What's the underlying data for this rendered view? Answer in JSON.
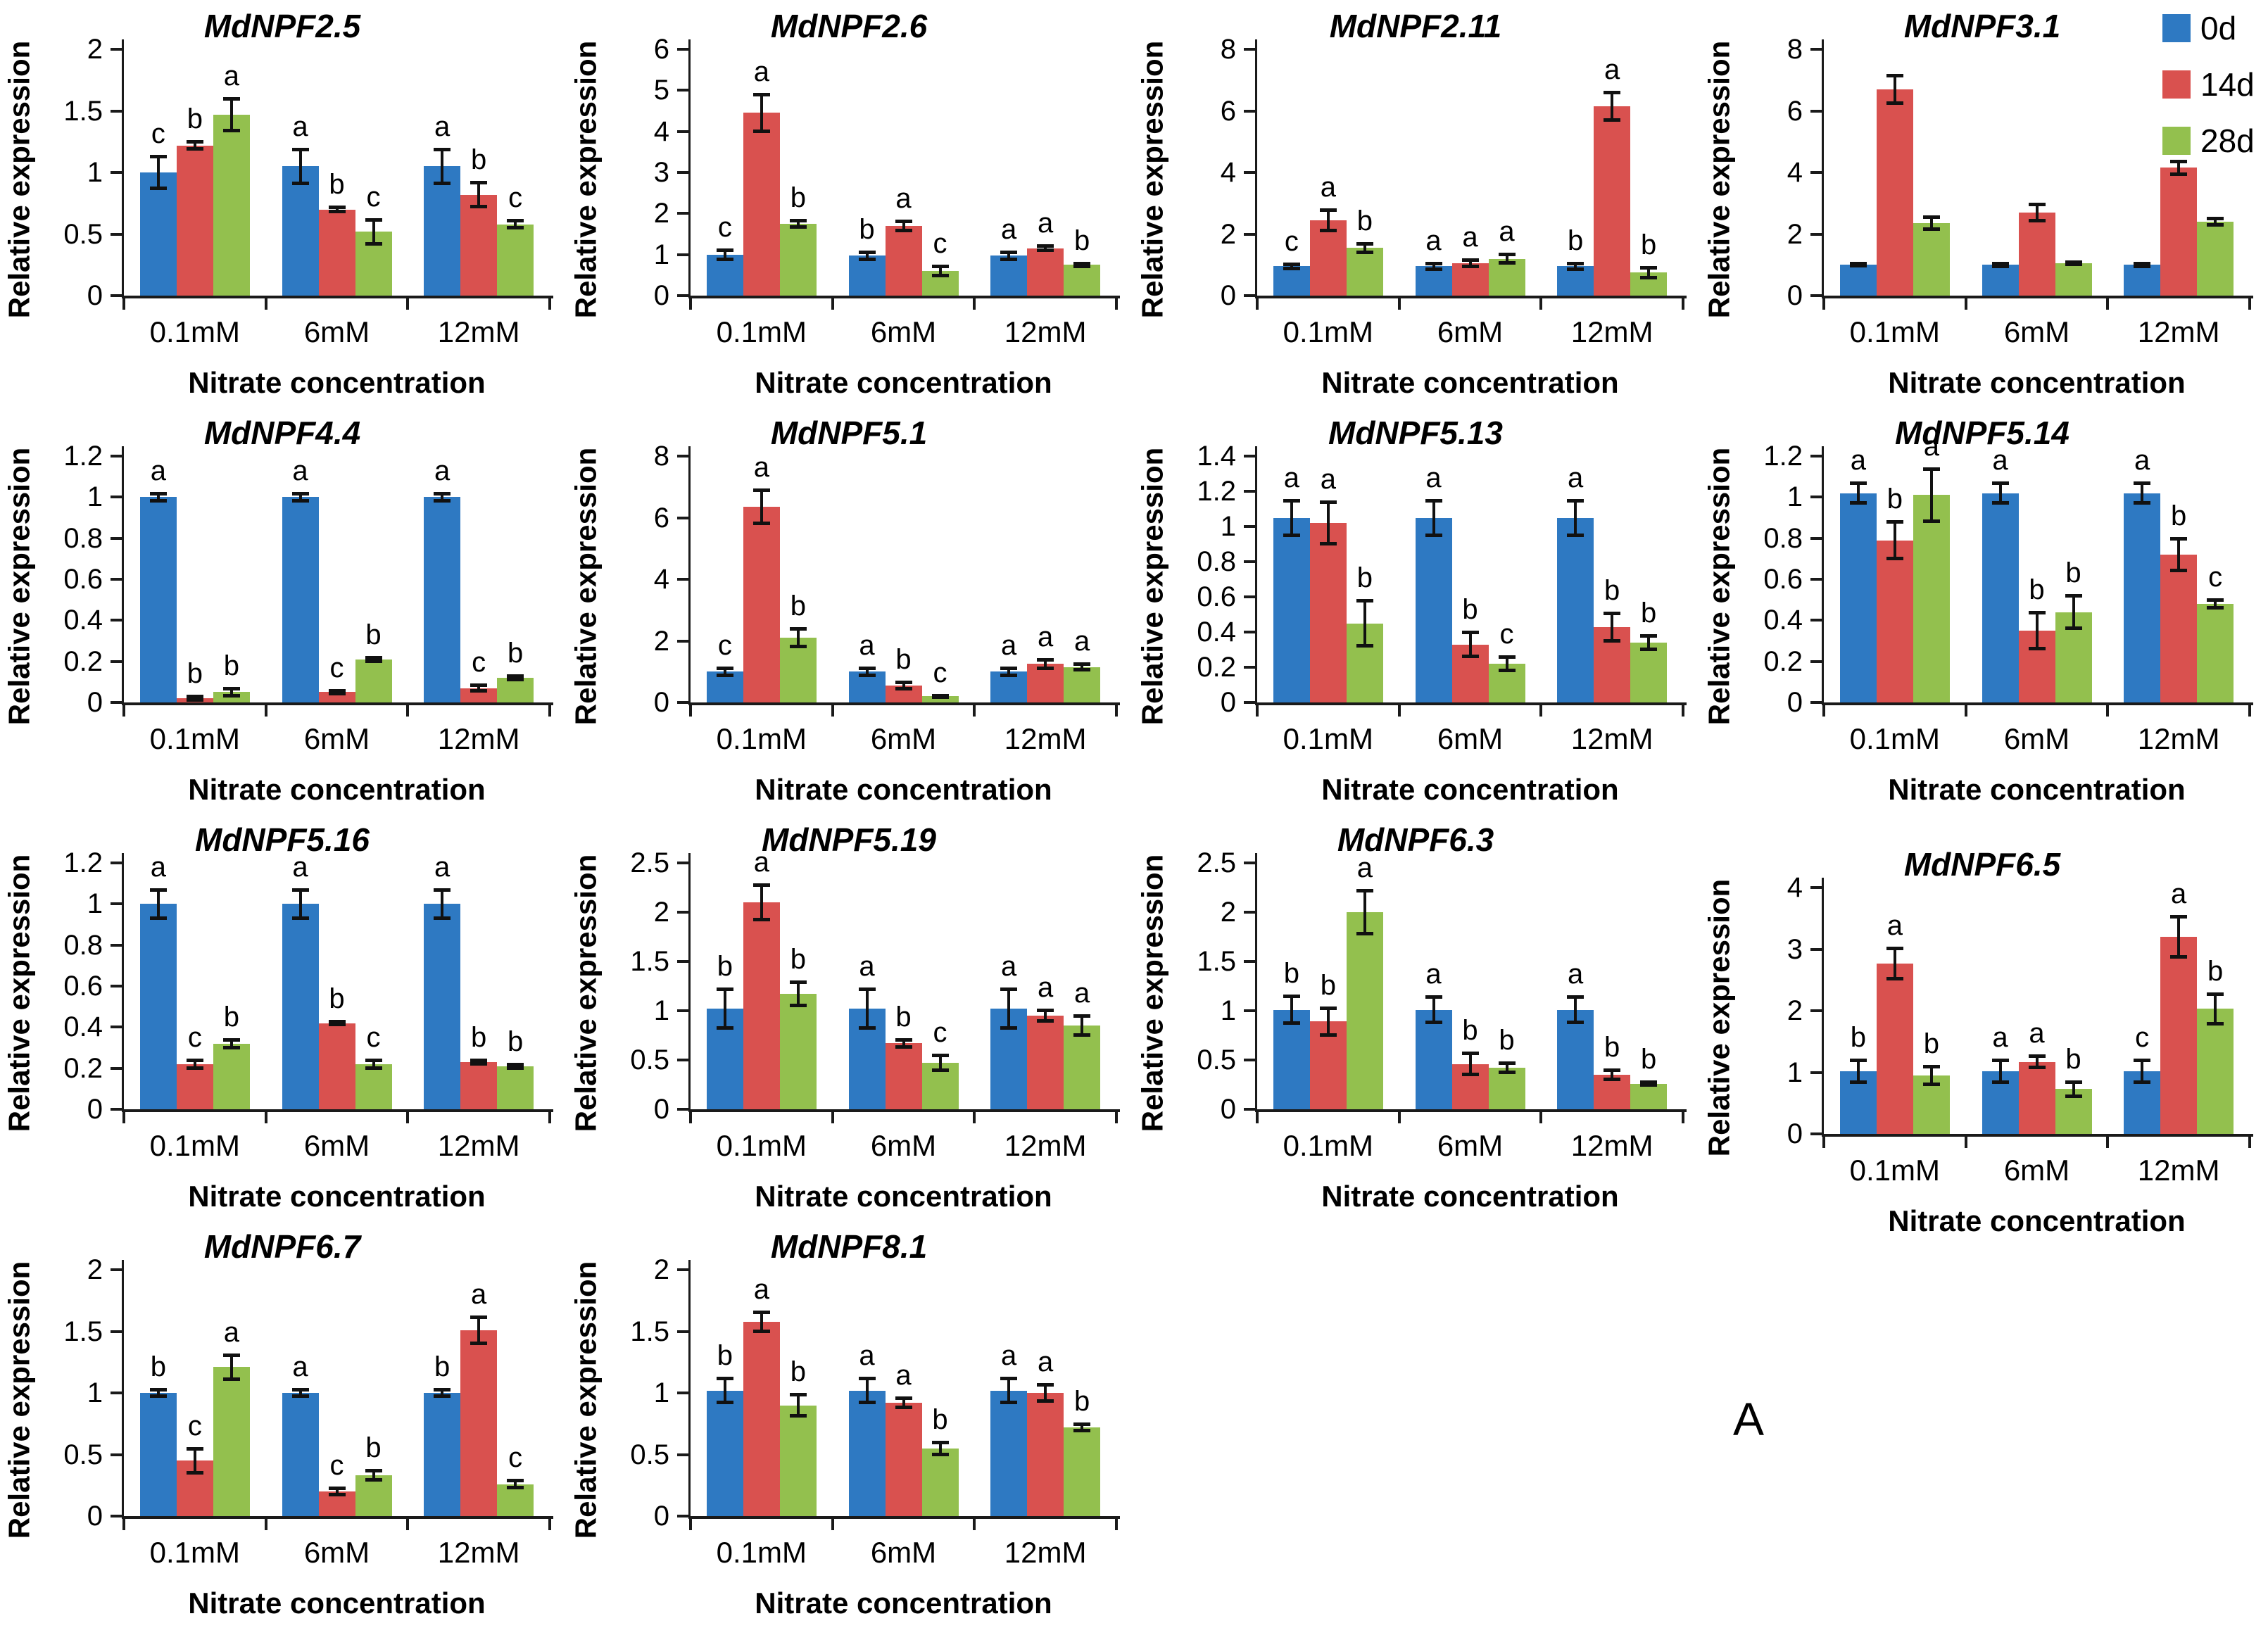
{
  "panel_label": "A",
  "legend": {
    "items": [
      {
        "label": "0d",
        "color": "#2E79C2"
      },
      {
        "label": "14d",
        "color": "#D9514F"
      },
      {
        "label": "28d",
        "color": "#93C04E"
      }
    ]
  },
  "axis": {
    "y_label": "Relative expression",
    "x_label": "Nitrate concentration"
  },
  "colors": {
    "bar_blue": "#2E79C2",
    "bar_red": "#D9514F",
    "bar_green": "#93C04E",
    "axis": "#1a1a1a"
  },
  "chart_data": [
    {
      "type": "bar",
      "title": "MdNPF2.5",
      "row": 0,
      "col": 0,
      "top_offset": 0,
      "ylim": [
        0,
        2
      ],
      "ystep": 0.5,
      "categories": [
        "0.1mM",
        "6mM",
        "12mM"
      ],
      "series": [
        {
          "name": "0d",
          "values": [
            1.0,
            1.05,
            1.05
          ],
          "errors": [
            0.13,
            0.14,
            0.14
          ],
          "letters": [
            "c",
            "a",
            "a"
          ]
        },
        {
          "name": "14d",
          "values": [
            1.22,
            0.7,
            0.82
          ],
          "errors": [
            0.03,
            0.02,
            0.1
          ],
          "letters": [
            "b",
            "b",
            "b"
          ]
        },
        {
          "name": "28d",
          "values": [
            1.47,
            0.52,
            0.58
          ],
          "errors": [
            0.13,
            0.1,
            0.03
          ],
          "letters": [
            "a",
            "c",
            "c"
          ]
        }
      ]
    },
    {
      "type": "bar",
      "title": "MdNPF2.6",
      "row": 0,
      "col": 1,
      "top_offset": 0,
      "ylim": [
        0,
        6
      ],
      "ystep": 1,
      "categories": [
        "0.1mM",
        "6mM",
        "12mM"
      ],
      "series": [
        {
          "name": "0d",
          "values": [
            1.0,
            0.97,
            0.97
          ],
          "errors": [
            0.12,
            0.1,
            0.1
          ],
          "letters": [
            "c",
            "b",
            "a"
          ]
        },
        {
          "name": "14d",
          "values": [
            4.45,
            1.7,
            1.15
          ],
          "errors": [
            0.45,
            0.12,
            0.06
          ],
          "letters": [
            "a",
            "a",
            "a"
          ]
        },
        {
          "name": "28d",
          "values": [
            1.75,
            0.6,
            0.75
          ],
          "errors": [
            0.08,
            0.12,
            0.04
          ],
          "letters": [
            "b",
            "c",
            "b"
          ]
        }
      ]
    },
    {
      "type": "bar",
      "title": "MdNPF2.11",
      "row": 0,
      "col": 2,
      "top_offset": 0,
      "ylim": [
        0,
        8
      ],
      "ystep": 2,
      "categories": [
        "0.1mM",
        "6mM",
        "12mM"
      ],
      "series": [
        {
          "name": "0d",
          "values": [
            0.95,
            0.95,
            0.95
          ],
          "errors": [
            0.08,
            0.1,
            0.1
          ],
          "letters": [
            "c",
            "a",
            "b"
          ]
        },
        {
          "name": "14d",
          "values": [
            2.45,
            1.05,
            6.15
          ],
          "errors": [
            0.35,
            0.12,
            0.45
          ],
          "letters": [
            "a",
            "a",
            "a"
          ]
        },
        {
          "name": "28d",
          "values": [
            1.55,
            1.2,
            0.75
          ],
          "errors": [
            0.15,
            0.15,
            0.17
          ],
          "letters": [
            "b",
            "a",
            "b"
          ]
        }
      ]
    },
    {
      "type": "bar",
      "title": "MdNPF3.1",
      "row": 0,
      "col": 3,
      "top_offset": 0,
      "ylim": [
        0,
        8
      ],
      "ystep": 2,
      "categories": [
        "0.1mM",
        "6mM",
        "12mM"
      ],
      "series": [
        {
          "name": "0d",
          "values": [
            1.0,
            1.0,
            1.0
          ],
          "errors": [
            0.05,
            0.06,
            0.06
          ],
          "letters": [
            "",
            "",
            ""
          ]
        },
        {
          "name": "14d",
          "values": [
            6.7,
            2.7,
            4.15
          ],
          "errors": [
            0.45,
            0.28,
            0.22
          ],
          "letters": [
            "",
            "",
            ""
          ]
        },
        {
          "name": "28d",
          "values": [
            2.35,
            1.05,
            2.4
          ],
          "errors": [
            0.2,
            0.05,
            0.12
          ],
          "letters": [
            "",
            "",
            ""
          ]
        }
      ]
    },
    {
      "type": "bar",
      "title": "MdNPF4.4",
      "row": 1,
      "col": 0,
      "top_offset": 0,
      "ylim": [
        0,
        1.2
      ],
      "ystep": 0.2,
      "categories": [
        "0.1mM",
        "6mM",
        "12mM"
      ],
      "series": [
        {
          "name": "0d",
          "values": [
            1.0,
            1.0,
            1.0
          ],
          "errors": [
            0.02,
            0.02,
            0.02
          ],
          "letters": [
            "a",
            "a",
            "a"
          ]
        },
        {
          "name": "14d",
          "values": [
            0.02,
            0.05,
            0.07
          ],
          "errors": [
            0.01,
            0.01,
            0.015
          ],
          "letters": [
            "b",
            "c",
            "c"
          ]
        },
        {
          "name": "28d",
          "values": [
            0.05,
            0.21,
            0.12
          ],
          "errors": [
            0.02,
            0.01,
            0.01
          ],
          "letters": [
            "b",
            "b",
            "b"
          ]
        }
      ]
    },
    {
      "type": "bar",
      "title": "MdNPF5.1",
      "row": 1,
      "col": 1,
      "top_offset": 0,
      "ylim": [
        0,
        8
      ],
      "ystep": 2,
      "categories": [
        "0.1mM",
        "6mM",
        "12mM"
      ],
      "series": [
        {
          "name": "0d",
          "values": [
            1.0,
            1.0,
            1.0
          ],
          "errors": [
            0.12,
            0.12,
            0.12
          ],
          "letters": [
            "c",
            "a",
            "a"
          ]
        },
        {
          "name": "14d",
          "values": [
            6.35,
            0.55,
            1.25
          ],
          "errors": [
            0.55,
            0.12,
            0.15
          ],
          "letters": [
            "a",
            "b",
            "a"
          ]
        },
        {
          "name": "28d",
          "values": [
            2.1,
            0.2,
            1.15
          ],
          "errors": [
            0.3,
            0.03,
            0.1
          ],
          "letters": [
            "b",
            "c",
            "a"
          ]
        }
      ]
    },
    {
      "type": "bar",
      "title": "MdNPF5.13",
      "row": 1,
      "col": 2,
      "top_offset": 0,
      "ylim": [
        0,
        1.4
      ],
      "ystep": 0.2,
      "categories": [
        "0.1mM",
        "6mM",
        "12mM"
      ],
      "series": [
        {
          "name": "0d",
          "values": [
            1.05,
            1.05,
            1.05
          ],
          "errors": [
            0.1,
            0.1,
            0.1
          ],
          "letters": [
            "a",
            "a",
            "a"
          ]
        },
        {
          "name": "14d",
          "values": [
            1.02,
            0.33,
            0.43
          ],
          "errors": [
            0.12,
            0.07,
            0.08
          ],
          "letters": [
            "a",
            "b",
            "b"
          ]
        },
        {
          "name": "28d",
          "values": [
            0.45,
            0.22,
            0.34
          ],
          "errors": [
            0.13,
            0.04,
            0.04
          ],
          "letters": [
            "b",
            "c",
            "b"
          ]
        }
      ]
    },
    {
      "type": "bar",
      "title": "MdNPF5.14",
      "row": 1,
      "col": 3,
      "top_offset": 0,
      "ylim": [
        0,
        1.2
      ],
      "ystep": 0.2,
      "categories": [
        "0.1mM",
        "6mM",
        "12mM"
      ],
      "series": [
        {
          "name": "0d",
          "values": [
            1.02,
            1.02,
            1.02
          ],
          "errors": [
            0.05,
            0.05,
            0.05
          ],
          "letters": [
            "a",
            "a",
            "a"
          ]
        },
        {
          "name": "14d",
          "values": [
            0.79,
            0.35,
            0.72
          ],
          "errors": [
            0.09,
            0.09,
            0.08
          ],
          "letters": [
            "b",
            "b",
            "b"
          ]
        },
        {
          "name": "28d",
          "values": [
            1.01,
            0.44,
            0.48
          ],
          "errors": [
            0.13,
            0.08,
            0.02
          ],
          "letters": [
            "a",
            "b",
            "c"
          ]
        }
      ]
    },
    {
      "type": "bar",
      "title": "MdNPF5.16",
      "row": 2,
      "col": 0,
      "top_offset": 0,
      "ylim": [
        0,
        1.2
      ],
      "ystep": 0.2,
      "categories": [
        "0.1mM",
        "6mM",
        "12mM"
      ],
      "series": [
        {
          "name": "0d",
          "values": [
            1.0,
            1.0,
            1.0
          ],
          "errors": [
            0.07,
            0.07,
            0.07
          ],
          "letters": [
            "a",
            "a",
            "a"
          ]
        },
        {
          "name": "14d",
          "values": [
            0.22,
            0.42,
            0.23
          ],
          "errors": [
            0.02,
            0.01,
            0.01
          ],
          "letters": [
            "c",
            "b",
            "b"
          ]
        },
        {
          "name": "28d",
          "values": [
            0.32,
            0.22,
            0.21
          ],
          "errors": [
            0.02,
            0.02,
            0.01
          ],
          "letters": [
            "b",
            "c",
            "b"
          ]
        }
      ]
    },
    {
      "type": "bar",
      "title": "MdNPF5.19",
      "row": 2,
      "col": 1,
      "top_offset": 0,
      "ylim": [
        0,
        2.5
      ],
      "ystep": 0.5,
      "categories": [
        "0.1mM",
        "6mM",
        "12mM"
      ],
      "series": [
        {
          "name": "0d",
          "values": [
            1.02,
            1.02,
            1.02
          ],
          "errors": [
            0.2,
            0.2,
            0.2
          ],
          "letters": [
            "b",
            "a",
            "a"
          ]
        },
        {
          "name": "14d",
          "values": [
            2.1,
            0.67,
            0.95
          ],
          "errors": [
            0.18,
            0.04,
            0.06
          ],
          "letters": [
            "a",
            "b",
            "a"
          ]
        },
        {
          "name": "28d",
          "values": [
            1.17,
            0.47,
            0.85
          ],
          "errors": [
            0.12,
            0.08,
            0.1
          ],
          "letters": [
            "b",
            "c",
            "a"
          ]
        }
      ]
    },
    {
      "type": "bar",
      "title": "MdNPF6.3",
      "row": 2,
      "col": 2,
      "top_offset": 0,
      "ylim": [
        0,
        2.5
      ],
      "ystep": 0.5,
      "categories": [
        "0.1mM",
        "6mM",
        "12mM"
      ],
      "series": [
        {
          "name": "0d",
          "values": [
            1.01,
            1.01,
            1.01
          ],
          "errors": [
            0.14,
            0.13,
            0.13
          ],
          "letters": [
            "b",
            "a",
            "a"
          ]
        },
        {
          "name": "14d",
          "values": [
            0.89,
            0.46,
            0.35
          ],
          "errors": [
            0.14,
            0.11,
            0.05
          ],
          "letters": [
            "b",
            "b",
            "b"
          ]
        },
        {
          "name": "28d",
          "values": [
            2.0,
            0.42,
            0.26
          ],
          "errors": [
            0.22,
            0.05,
            0.02
          ],
          "letters": [
            "a",
            "b",
            "b"
          ]
        }
      ]
    },
    {
      "type": "bar",
      "title": "MdNPF6.5",
      "row": 2,
      "col": 3,
      "top_offset": 35,
      "ylim": [
        0,
        4
      ],
      "ystep": 1,
      "categories": [
        "0.1mM",
        "6mM",
        "12mM"
      ],
      "series": [
        {
          "name": "0d",
          "values": [
            1.02,
            1.02,
            1.02
          ],
          "errors": [
            0.18,
            0.18,
            0.18
          ],
          "letters": [
            "b",
            "a",
            "c"
          ]
        },
        {
          "name": "14d",
          "values": [
            2.77,
            1.17,
            3.2
          ],
          "errors": [
            0.25,
            0.1,
            0.33
          ],
          "letters": [
            "a",
            "a",
            "a"
          ]
        },
        {
          "name": "28d",
          "values": [
            0.95,
            0.73,
            2.03
          ],
          "errors": [
            0.15,
            0.12,
            0.25
          ],
          "letters": [
            "b",
            "b",
            "b"
          ]
        }
      ]
    },
    {
      "type": "bar",
      "title": "MdNPF6.7",
      "row": 3,
      "col": 0,
      "top_offset": 0,
      "ylim": [
        0,
        2
      ],
      "ystep": 0.5,
      "categories": [
        "0.1mM",
        "6mM",
        "12mM"
      ],
      "series": [
        {
          "name": "0d",
          "values": [
            1.0,
            1.0,
            1.0
          ],
          "errors": [
            0.03,
            0.03,
            0.03
          ],
          "letters": [
            "b",
            "a",
            "b"
          ]
        },
        {
          "name": "14d",
          "values": [
            0.45,
            0.2,
            1.51
          ],
          "errors": [
            0.1,
            0.03,
            0.11
          ],
          "letters": [
            "c",
            "c",
            "a"
          ]
        },
        {
          "name": "28d",
          "values": [
            1.21,
            0.33,
            0.26
          ],
          "errors": [
            0.1,
            0.04,
            0.03
          ],
          "letters": [
            "a",
            "b",
            "c"
          ]
        }
      ]
    },
    {
      "type": "bar",
      "title": "MdNPF8.1",
      "row": 3,
      "col": 1,
      "top_offset": 0,
      "ylim": [
        0,
        2
      ],
      "ystep": 0.5,
      "categories": [
        "0.1mM",
        "6mM",
        "12mM"
      ],
      "series": [
        {
          "name": "0d",
          "values": [
            1.02,
            1.02,
            1.02
          ],
          "errors": [
            0.1,
            0.1,
            0.1
          ],
          "letters": [
            "b",
            "a",
            "a"
          ]
        },
        {
          "name": "14d",
          "values": [
            1.58,
            0.92,
            1.0
          ],
          "errors": [
            0.08,
            0.04,
            0.07
          ],
          "letters": [
            "a",
            "a",
            "a"
          ]
        },
        {
          "name": "28d",
          "values": [
            0.9,
            0.55,
            0.72
          ],
          "errors": [
            0.09,
            0.05,
            0.03
          ],
          "letters": [
            "b",
            "b",
            "b"
          ]
        }
      ]
    }
  ]
}
